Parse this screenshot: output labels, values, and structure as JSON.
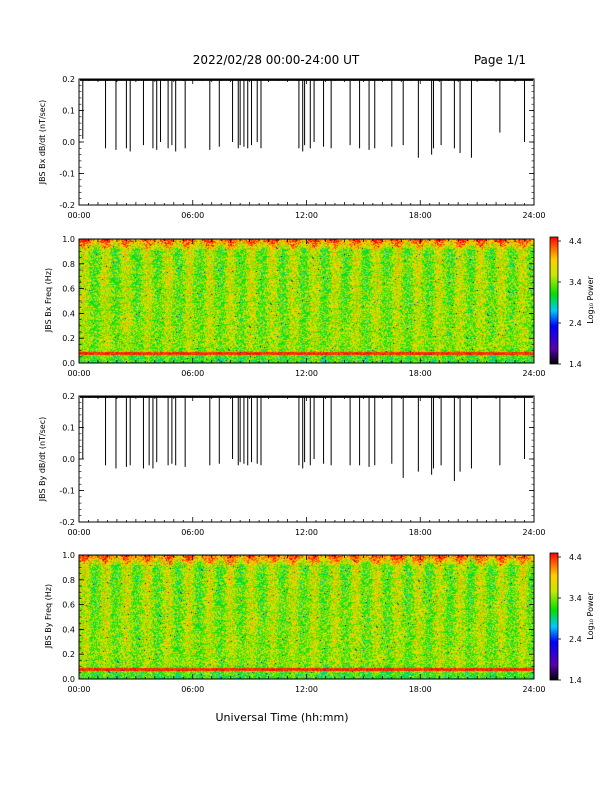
{
  "header": {
    "title": "2022/02/28  00:00-24:00 UT",
    "page": "Page 1/1"
  },
  "x_axis": {
    "title": "Universal Time (hh:mm)",
    "ticks": [
      "00:00",
      "06:00",
      "12:00",
      "18:00",
      "24:00"
    ]
  },
  "colorbar": {
    "label": "Log₁₀ Power",
    "ticks": [
      "4.4",
      "3.4",
      "2.4",
      "1.4"
    ]
  },
  "chart_data": [
    {
      "type": "line",
      "title": "",
      "xlabel": "",
      "ylabel": "JBS Bx dB/dt (nT/sec)",
      "xlim": [
        0,
        24
      ],
      "ylim": [
        -0.2,
        0.2
      ],
      "yticks": [
        "0.2",
        "0.1",
        "0.0",
        "-0.1",
        "-0.2"
      ],
      "spikes": {
        "x_hours": [
          0.2,
          1.4,
          1.95,
          2.5,
          2.7,
          3.4,
          3.9,
          4.1,
          4.3,
          4.7,
          4.9,
          5.1,
          5.6,
          6.9,
          7.4,
          8.1,
          8.4,
          8.5,
          8.7,
          8.9,
          9.1,
          9.4,
          9.6,
          11.6,
          11.8,
          11.9,
          12.2,
          12.4,
          12.9,
          13.3,
          14.3,
          14.8,
          15.3,
          15.6,
          16.5,
          17.1,
          17.9,
          18.6,
          18.7,
          19.1,
          19.8,
          20.1,
          20.7,
          22.2,
          23.5
        ],
        "y_min": [
          0.01,
          -0.02,
          -0.025,
          -0.02,
          -0.03,
          -0.01,
          -0.02,
          -0.025,
          0.0,
          -0.02,
          -0.01,
          -0.03,
          -0.02,
          -0.025,
          -0.015,
          0.0,
          -0.02,
          -0.01,
          -0.015,
          -0.02,
          -0.01,
          0.0,
          -0.02,
          -0.02,
          -0.03,
          -0.01,
          -0.02,
          0.0,
          -0.015,
          -0.02,
          -0.01,
          -0.02,
          -0.025,
          -0.02,
          -0.015,
          -0.01,
          -0.05,
          -0.04,
          -0.02,
          -0.01,
          -0.02,
          -0.035,
          -0.05,
          0.03,
          0.0
        ]
      }
    },
    {
      "type": "heatmap",
      "title": "",
      "xlabel": "",
      "ylabel": "JBS Bx Freq (Hz)",
      "xlim": [
        0,
        24
      ],
      "ylim": [
        0.0,
        1.0
      ],
      "yticks": [
        "1.0",
        "0.8",
        "0.6",
        "0.4",
        "0.2",
        "0.0"
      ],
      "zlim": [
        1.4,
        4.4
      ],
      "z_description_levels": {
        "background": 3.4,
        "low_freq_band_0.07Hz": 4.3,
        "top_edge": 4.0
      }
    },
    {
      "type": "line",
      "title": "",
      "xlabel": "",
      "ylabel": "JBS By dB/dt (nT/sec)",
      "xlim": [
        0,
        24
      ],
      "ylim": [
        -0.2,
        0.2
      ],
      "yticks": [
        "0.2",
        "0.1",
        "0.0",
        "-0.1",
        "-0.2"
      ],
      "spikes": {
        "x_hours": [
          0.2,
          1.4,
          1.95,
          2.5,
          2.7,
          3.4,
          3.7,
          3.9,
          4.1,
          4.7,
          4.9,
          5.1,
          5.6,
          6.9,
          7.4,
          8.1,
          8.4,
          8.5,
          8.7,
          8.9,
          9.1,
          9.4,
          9.6,
          11.6,
          11.8,
          11.9,
          12.2,
          12.4,
          12.9,
          13.3,
          14.3,
          14.8,
          15.3,
          15.6,
          16.5,
          17.1,
          17.9,
          18.6,
          18.7,
          19.1,
          19.8,
          20.1,
          20.7,
          22.2,
          23.5
        ],
        "y_min": [
          0.0,
          -0.02,
          -0.03,
          -0.025,
          -0.02,
          -0.03,
          -0.02,
          -0.03,
          -0.01,
          -0.02,
          -0.015,
          -0.02,
          -0.025,
          -0.02,
          -0.015,
          0.0,
          -0.02,
          -0.01,
          -0.015,
          -0.02,
          -0.01,
          -0.015,
          -0.02,
          -0.02,
          -0.03,
          -0.01,
          -0.02,
          0.0,
          -0.015,
          -0.02,
          -0.02,
          -0.02,
          -0.025,
          -0.02,
          -0.015,
          -0.06,
          -0.04,
          -0.05,
          -0.03,
          -0.02,
          -0.07,
          -0.04,
          -0.03,
          -0.02,
          0.0
        ]
      }
    },
    {
      "type": "heatmap",
      "title": "",
      "xlabel": "",
      "ylabel": "JBS By Freq (Hz)",
      "xlim": [
        0,
        24
      ],
      "ylim": [
        0.0,
        1.0
      ],
      "yticks": [
        "1.0",
        "0.8",
        "0.6",
        "0.4",
        "0.2",
        "0.0"
      ],
      "zlim": [
        1.4,
        4.4
      ],
      "z_description_levels": {
        "background": 3.4,
        "low_freq_band_0.07Hz": 4.3,
        "top_edge": 4.0
      }
    }
  ]
}
